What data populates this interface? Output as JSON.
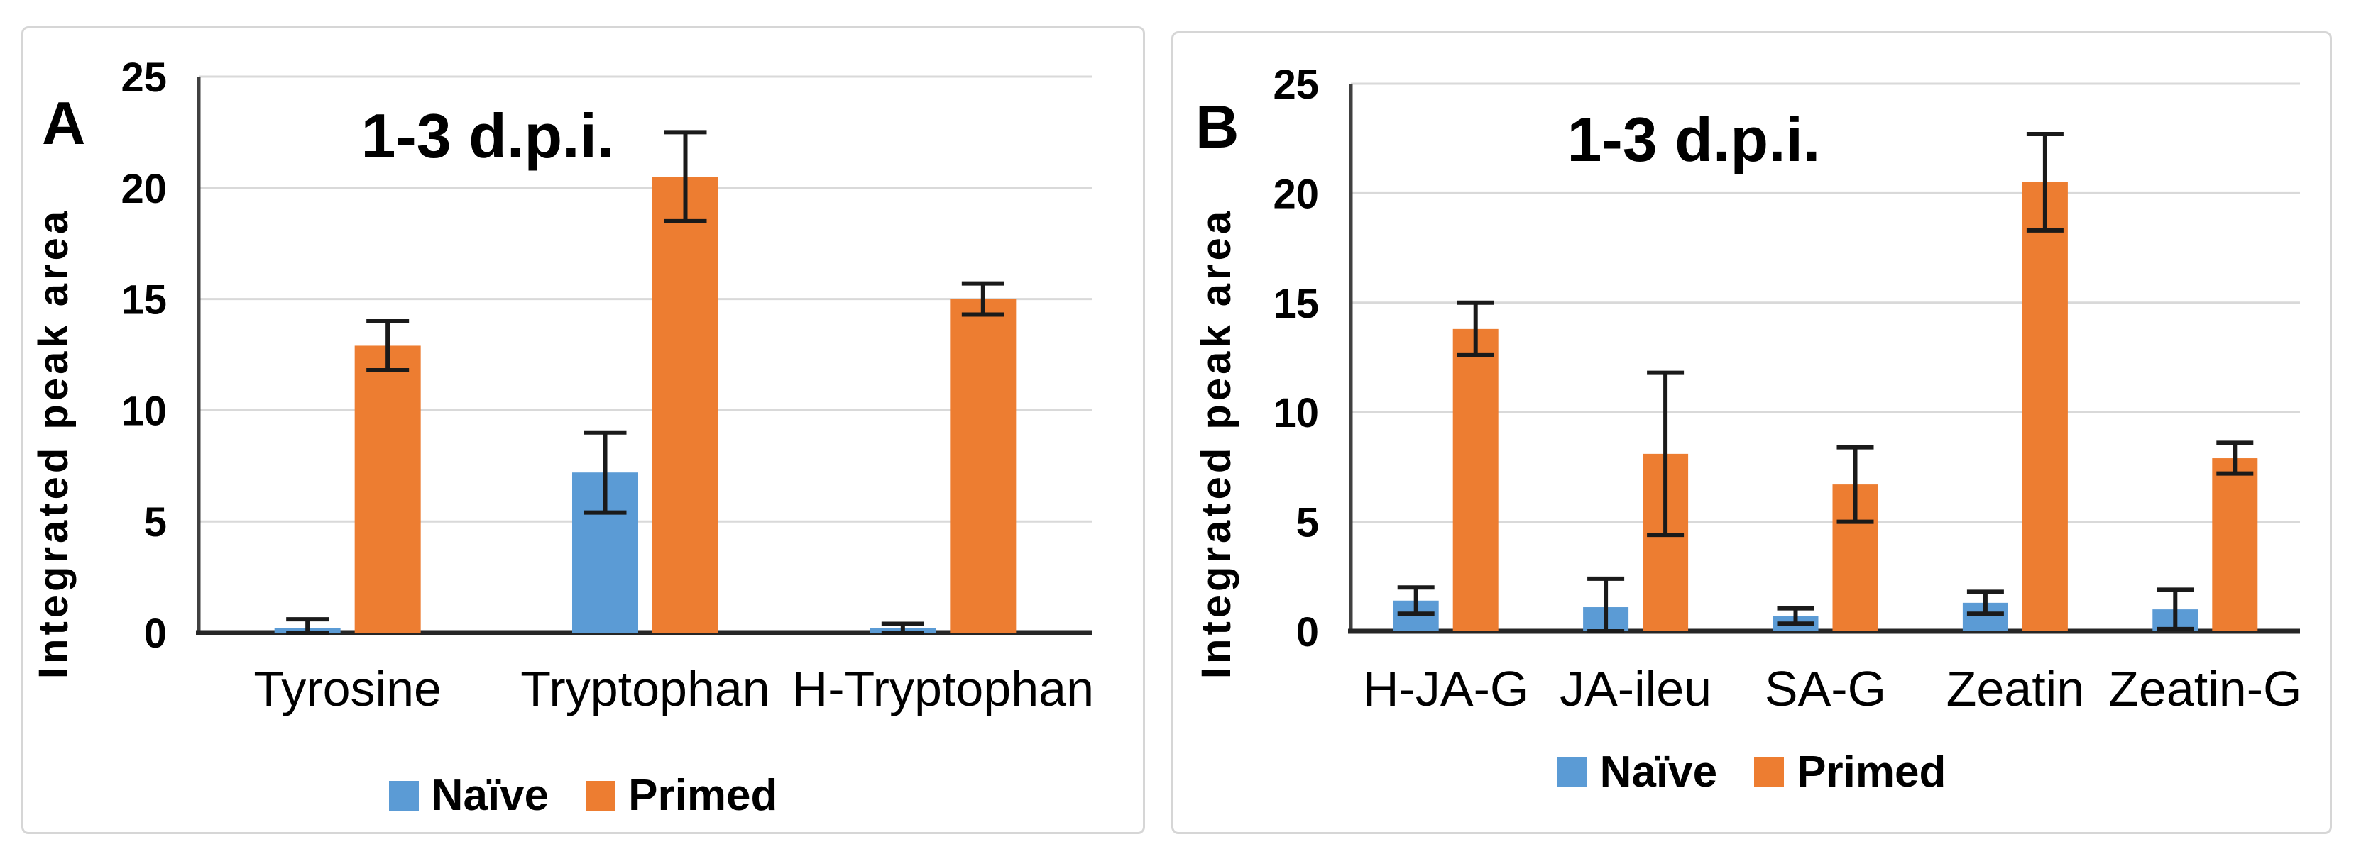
{
  "figure": {
    "background": "#ffffff",
    "panel_border_color": "#d6d6d6",
    "grid_color": "#d9d9d9",
    "axis_line_color": "#404040",
    "baseline_color": "#262626",
    "error_bar_color": "#1a1a1a",
    "text_color": "#000000",
    "naive_color": "#5b9bd5",
    "primed_color": "#ed7d31"
  },
  "legend": {
    "items": [
      {
        "label": "Naïve",
        "color": "#5b9bd5"
      },
      {
        "label": "Primed",
        "color": "#ed7d31"
      }
    ]
  },
  "chart_data": [
    {
      "panel": "A",
      "type": "bar",
      "title": "1-3 d.p.i.",
      "xlabel": "",
      "ylabel": "Integrated peak area",
      "ylim": [
        0,
        25
      ],
      "yticks": [
        0,
        5,
        10,
        15,
        20,
        25
      ],
      "grid": true,
      "legend_position": "bottom",
      "categories": [
        "Tyrosine",
        "Tryptophan",
        "H-Tryptophan"
      ],
      "series": [
        {
          "name": "Naïve",
          "color": "#5b9bd5",
          "values": [
            0.2,
            7.2,
            0.2
          ],
          "errors": [
            0.4,
            1.8,
            0.2
          ]
        },
        {
          "name": "Primed",
          "color": "#ed7d31",
          "values": [
            12.9,
            20.5,
            15.0
          ],
          "errors": [
            1.1,
            2.0,
            0.7
          ]
        }
      ]
    },
    {
      "panel": "B",
      "type": "bar",
      "title": "1-3 d.p.i.",
      "xlabel": "",
      "ylabel": "Integrated peak area",
      "ylim": [
        0,
        25
      ],
      "yticks": [
        0,
        5,
        10,
        15,
        20,
        25
      ],
      "grid": true,
      "legend_position": "bottom",
      "categories": [
        "H-JA-G",
        "JA-ileu",
        "SA-G",
        "Zeatin",
        "Zeatin-G"
      ],
      "series": [
        {
          "name": "Naïve",
          "color": "#5b9bd5",
          "values": [
            1.4,
            1.1,
            0.7,
            1.3,
            1.0
          ],
          "errors": [
            0.6,
            1.3,
            0.35,
            0.5,
            0.9
          ]
        },
        {
          "name": "Primed",
          "color": "#ed7d31",
          "values": [
            13.8,
            8.1,
            6.7,
            20.5,
            7.9
          ],
          "errors": [
            1.2,
            3.7,
            1.7,
            2.2,
            0.7
          ]
        }
      ]
    }
  ]
}
